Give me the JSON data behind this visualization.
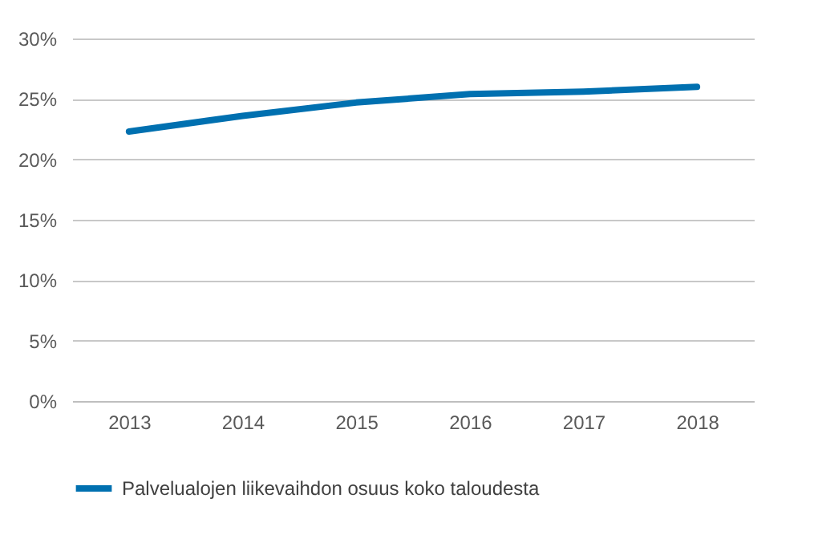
{
  "chart_data": {
    "type": "line",
    "categories": [
      "2013",
      "2014",
      "2015",
      "2016",
      "2017",
      "2018"
    ],
    "series": [
      {
        "name": "Palvelualojen liikevaihdon osuus koko taloudesta",
        "color": "#0070b0",
        "values": [
          22.3,
          23.6,
          24.7,
          25.4,
          25.6,
          26.0
        ]
      }
    ],
    "ylim": [
      0,
      30
    ],
    "yticks": [
      {
        "value": 0,
        "label": "0%"
      },
      {
        "value": 5,
        "label": "5%"
      },
      {
        "value": 10,
        "label": "10%"
      },
      {
        "value": 15,
        "label": "15%"
      },
      {
        "value": 20,
        "label": "20%"
      },
      {
        "value": 25,
        "label": "25%"
      },
      {
        "value": 30,
        "label": "30%"
      }
    ],
    "grid": "y",
    "legend": "bottom",
    "marker": "none",
    "line_style": "solid"
  }
}
